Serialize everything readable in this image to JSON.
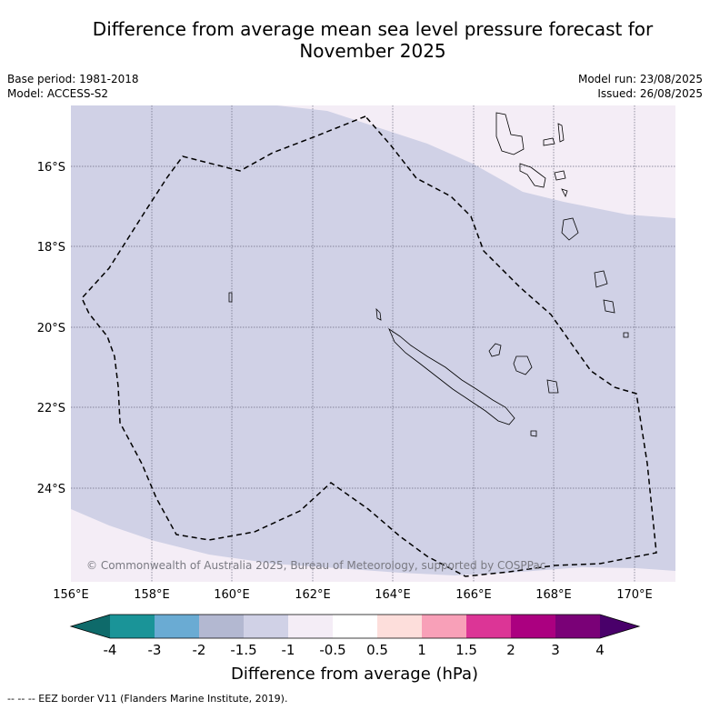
{
  "header": {
    "title_line1": "Difference from average mean sea level pressure forecast for",
    "title_line2": "November 2025",
    "base_period": "Base period: 1981-2018",
    "model": "Model: ACCESS-S2",
    "model_run": "Model run: 23/08/2025",
    "issued": "Issued: 26/08/2025"
  },
  "map": {
    "lat_labels": [
      "16°S",
      "18°S",
      "20°S",
      "22°S",
      "24°S"
    ],
    "lon_labels": [
      "156°E",
      "158°E",
      "160°E",
      "162°E",
      "164°E",
      "166°E",
      "168°E",
      "170°E"
    ],
    "copyright": "© Commonwealth of Australia 2025, Bureau of Meteorology, supported by COSPPac",
    "colors": {
      "band_neg1_to_neg1_5": "#d0d1e6",
      "band_neg0_5_to_neg1": "#f4edf6",
      "eez_border": "#000000"
    }
  },
  "colorbar": {
    "tick_labels": [
      "-4",
      "-3",
      "-2",
      "-1.5",
      "-1",
      "-0.5",
      "0.5",
      "1",
      "1.5",
      "2",
      "3",
      "4"
    ],
    "colors": [
      "#0e6a6a",
      "#1a9498",
      "#6aabd3",
      "#b3b8d1",
      "#d0d1e6",
      "#f4edf6",
      "#ffffff",
      "#fddedb",
      "#f8a0b8",
      "#dc3596",
      "#ab0080",
      "#7a0177",
      "#49006a"
    ],
    "label": "Difference from average (hPa)"
  },
  "footer": {
    "legend": "--  --  -- EEZ border V11 (Flanders Marine Institute, 2019)."
  }
}
